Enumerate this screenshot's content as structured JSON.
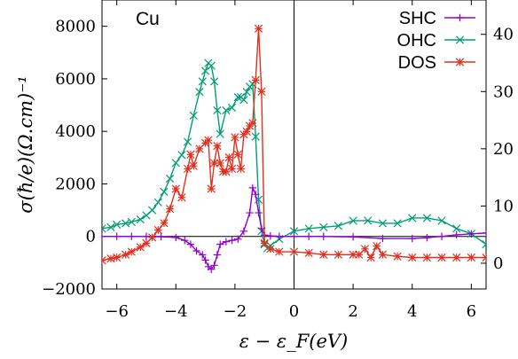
{
  "chart_data": {
    "type": "line",
    "annotation": "Cu",
    "xlabel": "ε − ε_F(eV)",
    "ylabel": "σ(ħ/e)(Ω.cm)⁻¹",
    "xlim": [
      -6.5,
      6.5
    ],
    "ylim": [
      -2000,
      9000
    ],
    "y2lim": [
      -4.5,
      46
    ],
    "xticks": [
      -6,
      -4,
      -2,
      0,
      2,
      4,
      6
    ],
    "xtick_labels": [
      "−6",
      "−4",
      "−2",
      "0",
      "2",
      "4",
      "6"
    ],
    "yticks": [
      -2000,
      0,
      2000,
      4000,
      6000,
      8000
    ],
    "ytick_labels": [
      "−2000",
      "0",
      "2000",
      "4000",
      "6000",
      "8000"
    ],
    "y2ticks": [
      0,
      10,
      20,
      30,
      40
    ],
    "y2tick_labels": [
      "0",
      "10",
      "20",
      "30",
      "40"
    ],
    "grid": false,
    "legend": "top-right",
    "reference_lines": {
      "x": 0,
      "y": 0
    },
    "series": [
      {
        "name": "SHC",
        "color": "#9400d3",
        "marker": "plus",
        "axis": "left",
        "x": [
          -6.5,
          -6.0,
          -5.5,
          -5.0,
          -4.5,
          -4.0,
          -3.7,
          -3.5,
          -3.3,
          -3.1,
          -3.0,
          -2.9,
          -2.8,
          -2.7,
          -2.6,
          -2.5,
          -2.3,
          -2.1,
          -1.9,
          -1.7,
          -1.5,
          -1.4,
          -1.3,
          -1.2,
          -1.1,
          -1.0,
          -0.8,
          -0.5,
          0.0,
          0.5,
          1.0,
          2.0,
          3.0,
          4.0,
          4.5,
          5.0,
          5.5,
          6.0,
          6.5
        ],
        "y": [
          0,
          0,
          0,
          0,
          -10,
          -40,
          -150,
          -300,
          -550,
          -700,
          -900,
          -1150,
          -1250,
          -1100,
          -700,
          -300,
          -200,
          -150,
          -100,
          200,
          900,
          1850,
          1600,
          900,
          300,
          50,
          20,
          0,
          0,
          0,
          0,
          -20,
          -80,
          -80,
          -50,
          0,
          60,
          100,
          130
        ]
      },
      {
        "name": "OHC",
        "color": "#009e73",
        "marker": "cross",
        "axis": "left",
        "x": [
          -6.5,
          -6.2,
          -6.0,
          -5.7,
          -5.5,
          -5.2,
          -5.0,
          -4.8,
          -4.6,
          -4.4,
          -4.2,
          -4.0,
          -3.8,
          -3.6,
          -3.4,
          -3.2,
          -3.1,
          -3.0,
          -2.9,
          -2.8,
          -2.7,
          -2.6,
          -2.5,
          -2.3,
          -2.1,
          -1.9,
          -1.8,
          -1.7,
          -1.6,
          -1.5,
          -1.4,
          -1.3,
          -1.2,
          -1.1,
          -1.0,
          -0.9,
          -0.8,
          -0.5,
          0.0,
          0.5,
          1.0,
          1.5,
          2.0,
          2.5,
          3.0,
          3.5,
          4.0,
          4.5,
          5.0,
          5.5,
          6.0,
          6.5
        ],
        "y": [
          300,
          350,
          450,
          500,
          550,
          650,
          800,
          1000,
          1300,
          1700,
          2200,
          2800,
          3100,
          3600,
          4600,
          5500,
          5900,
          6300,
          6600,
          6500,
          5900,
          4800,
          3900,
          4800,
          4900,
          5300,
          5300,
          5200,
          5500,
          5700,
          5800,
          3800,
          1400,
          200,
          -300,
          -450,
          -350,
          -100,
          200,
          300,
          350,
          400,
          600,
          600,
          500,
          500,
          700,
          700,
          600,
          300,
          100,
          -300
        ]
      },
      {
        "name": "DOS",
        "color": "#e03020",
        "marker": "star",
        "axis": "right",
        "x": [
          -6.5,
          -6.2,
          -6.0,
          -5.7,
          -5.5,
          -5.2,
          -5.0,
          -4.8,
          -4.6,
          -4.4,
          -4.2,
          -4.0,
          -3.8,
          -3.6,
          -3.5,
          -3.4,
          -3.2,
          -3.0,
          -2.9,
          -2.8,
          -2.7,
          -2.6,
          -2.5,
          -2.4,
          -2.3,
          -2.2,
          -2.1,
          -2.0,
          -1.9,
          -1.8,
          -1.7,
          -1.6,
          -1.5,
          -1.4,
          -1.3,
          -1.2,
          -1.1,
          -1.0,
          -0.8,
          -0.5,
          0.0,
          0.5,
          1.0,
          1.5,
          2.0,
          2.2,
          2.4,
          2.6,
          2.8,
          3.0,
          3.5,
          4.0,
          4.5,
          5.0,
          5.5,
          6.0,
          6.5
        ],
        "y": [
          0.5,
          0.8,
          1.0,
          1.5,
          2.0,
          2.8,
          3.5,
          4.5,
          5.8,
          7.0,
          9.5,
          13.0,
          11.5,
          16.5,
          19.0,
          17.0,
          20.0,
          21.0,
          21.5,
          13.0,
          17.5,
          20.5,
          17.5,
          16.0,
          16.0,
          18.5,
          16.5,
          22.0,
          19.0,
          16.5,
          22.5,
          23.0,
          24.0,
          24.5,
          32.0,
          41.0,
          30.0,
          3.5,
          2.5,
          2.0,
          2.0,
          1.8,
          1.5,
          1.5,
          1.5,
          1.5,
          2.5,
          1.0,
          3.0,
          1.5,
          1.2,
          1.0,
          1.0,
          1.0,
          1.0,
          1.0,
          1.0
        ]
      }
    ]
  }
}
